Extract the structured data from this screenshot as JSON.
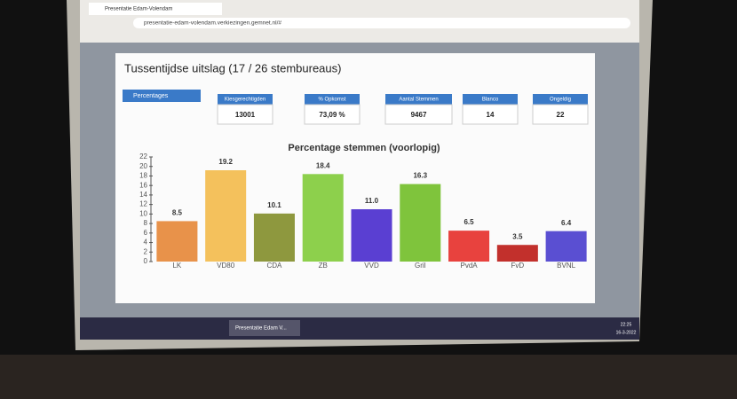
{
  "browser": {
    "tab_title": "Presentatie Edam-Volendam",
    "url": "presentatie-edam-volendam.verkiezingen.gemnet.nl/#"
  },
  "modal": {
    "title": "Tussentijdse uitslag (17 / 26 stembureaus)",
    "button": "Percentages",
    "stats": [
      {
        "label": "Kiesgerechtigden",
        "value": 13001
      },
      {
        "label": "% Opkomst",
        "value": "73,09 %"
      },
      {
        "label": "Aantal Stemmen",
        "value": 9467
      },
      {
        "label": "Blanco",
        "value": 14
      },
      {
        "label": "Ongeldig",
        "value": 22
      }
    ]
  },
  "taskbar": {
    "item": "Presentatie Edam V...",
    "time": "22:25",
    "date": "16-3-2022"
  },
  "chart_data": {
    "type": "bar",
    "title": "Percentage stemmen (voorlopig)",
    "categories": [
      "LK",
      "VD80",
      "CDA",
      "ZB",
      "VVD",
      "Gril",
      "PvdA",
      "FvD",
      "BVNL"
    ],
    "values": [
      8.5,
      19.2,
      10.1,
      18.4,
      11.0,
      16.3,
      6.5,
      3.5,
      6.4
    ],
    "value_labels": [
      "8.5",
      "19.2",
      "10.1",
      "18.4",
      "11.0",
      "16.3",
      "6.5",
      "3.5",
      "6.4"
    ],
    "colors": [
      "#e8924a",
      "#f4c15c",
      "#8e983e",
      "#8dd04c",
      "#5a3fd2",
      "#7fc43c",
      "#e8423e",
      "#c2302c",
      "#5a4fd2"
    ],
    "ylim": [
      0,
      22
    ],
    "yticks": [
      0,
      2,
      4,
      6,
      8,
      10,
      12,
      14,
      16,
      18,
      20,
      22
    ]
  }
}
